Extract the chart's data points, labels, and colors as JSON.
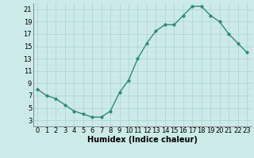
{
  "x": [
    0,
    1,
    2,
    3,
    4,
    5,
    6,
    7,
    8,
    9,
    10,
    11,
    12,
    13,
    14,
    15,
    16,
    17,
    18,
    19,
    20,
    21,
    22,
    23
  ],
  "y": [
    8,
    7,
    6.5,
    5.5,
    4.5,
    4,
    3.5,
    3.5,
    4.5,
    7.5,
    9.5,
    13,
    15.5,
    17.5,
    18.5,
    18.5,
    20,
    21.5,
    21.5,
    20,
    19,
    17,
    15.5,
    14
  ],
  "line_color": "#2e8b77",
  "marker_color": "#2e8b77",
  "bg_color": "#cceae8",
  "grid_major_color": "#aad4d0",
  "grid_minor_color": "#bbdedd",
  "xlabel": "Humidex (Indice chaleur)",
  "ylim": [
    2,
    22
  ],
  "xlim": [
    -0.5,
    23.5
  ],
  "yticks": [
    3,
    5,
    7,
    9,
    11,
    13,
    15,
    17,
    19,
    21
  ],
  "xticks": [
    0,
    1,
    2,
    3,
    4,
    5,
    6,
    7,
    8,
    9,
    10,
    11,
    12,
    13,
    14,
    15,
    16,
    17,
    18,
    19,
    20,
    21,
    22,
    23
  ],
  "font_size": 6,
  "xlabel_fontsize": 7
}
